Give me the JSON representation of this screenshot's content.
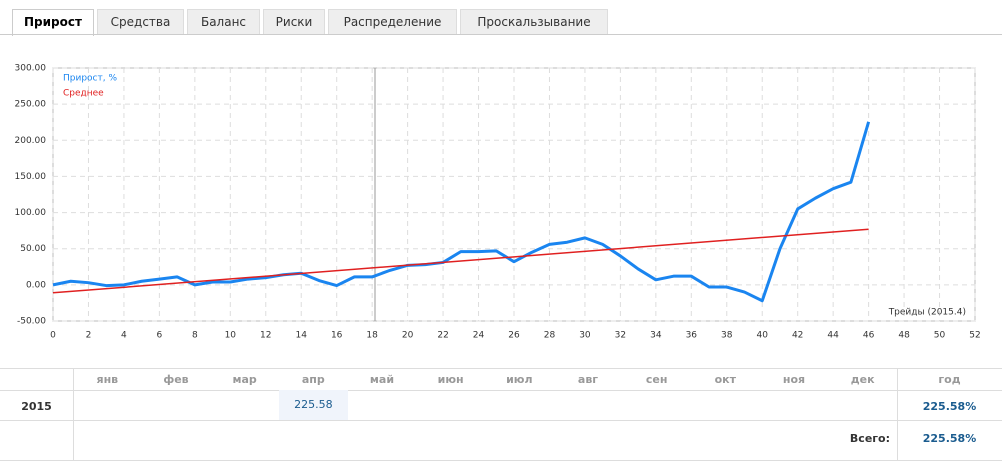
{
  "tabs": [
    "Прирост",
    "Средства",
    "Баланс",
    "Риски",
    "Распределение",
    "Проскальзывание"
  ],
  "chart_data": {
    "type": "line",
    "xlabel": "Трейды (2015.4)",
    "series": [
      {
        "name": "Прирост, %",
        "color": "#1a85f0",
        "x": [
          0,
          1,
          2,
          3,
          4,
          5,
          6,
          7,
          8,
          9,
          10,
          11,
          12,
          13,
          14,
          15,
          16,
          17,
          18,
          19,
          20,
          21,
          22,
          23,
          24,
          25,
          26,
          27,
          28,
          29,
          30,
          31,
          32,
          33,
          34,
          35,
          36,
          37,
          38,
          39,
          40,
          41,
          42,
          43,
          44,
          45,
          46
        ],
        "values": [
          0,
          5,
          3,
          -1,
          0,
          5,
          8,
          11,
          0,
          4,
          4,
          8,
          10,
          14,
          16,
          6,
          -1,
          11,
          11,
          20,
          27,
          28,
          31,
          46,
          46,
          47,
          32,
          45,
          56,
          59,
          65,
          56,
          40,
          22,
          7,
          12,
          12,
          -3,
          -3,
          -10,
          -22,
          50,
          105,
          120,
          133,
          142,
          225.58
        ]
      },
      {
        "name": "Среднее",
        "color": "#e02020",
        "x": [
          0,
          46
        ],
        "values": [
          -11,
          77
        ]
      }
    ],
    "xlim": [
      0,
      52
    ],
    "xticks": [
      0,
      2,
      4,
      6,
      8,
      10,
      12,
      14,
      16,
      18,
      20,
      22,
      24,
      26,
      28,
      30,
      32,
      34,
      36,
      38,
      40,
      42,
      44,
      46,
      48,
      50,
      52
    ],
    "ylim": [
      -50,
      300
    ],
    "yticks": [
      {
        "value": -50,
        "label": "-50.00"
      },
      {
        "value": 0,
        "label": "0.00"
      },
      {
        "value": 50,
        "label": "50.00"
      },
      {
        "value": 100,
        "label": "100.00"
      },
      {
        "value": 150,
        "label": "150.00"
      },
      {
        "value": 200,
        "label": "200.00"
      },
      {
        "value": 250,
        "label": "250.00"
      },
      {
        "value": 300,
        "label": "300.00"
      }
    ],
    "grid": true
  },
  "table": {
    "months": [
      "янв",
      "фев",
      "мар",
      "апр",
      "май",
      "июн",
      "июл",
      "авг",
      "сен",
      "окт",
      "ноя",
      "дек"
    ],
    "year_header": "год",
    "rows": [
      {
        "year": "2015",
        "cells": [
          null,
          null,
          null,
          "225.58",
          null,
          null,
          null,
          null,
          null,
          null,
          null,
          null
        ],
        "total": "225.58%"
      }
    ],
    "total_label": "Всего:",
    "total": "225.58%"
  }
}
